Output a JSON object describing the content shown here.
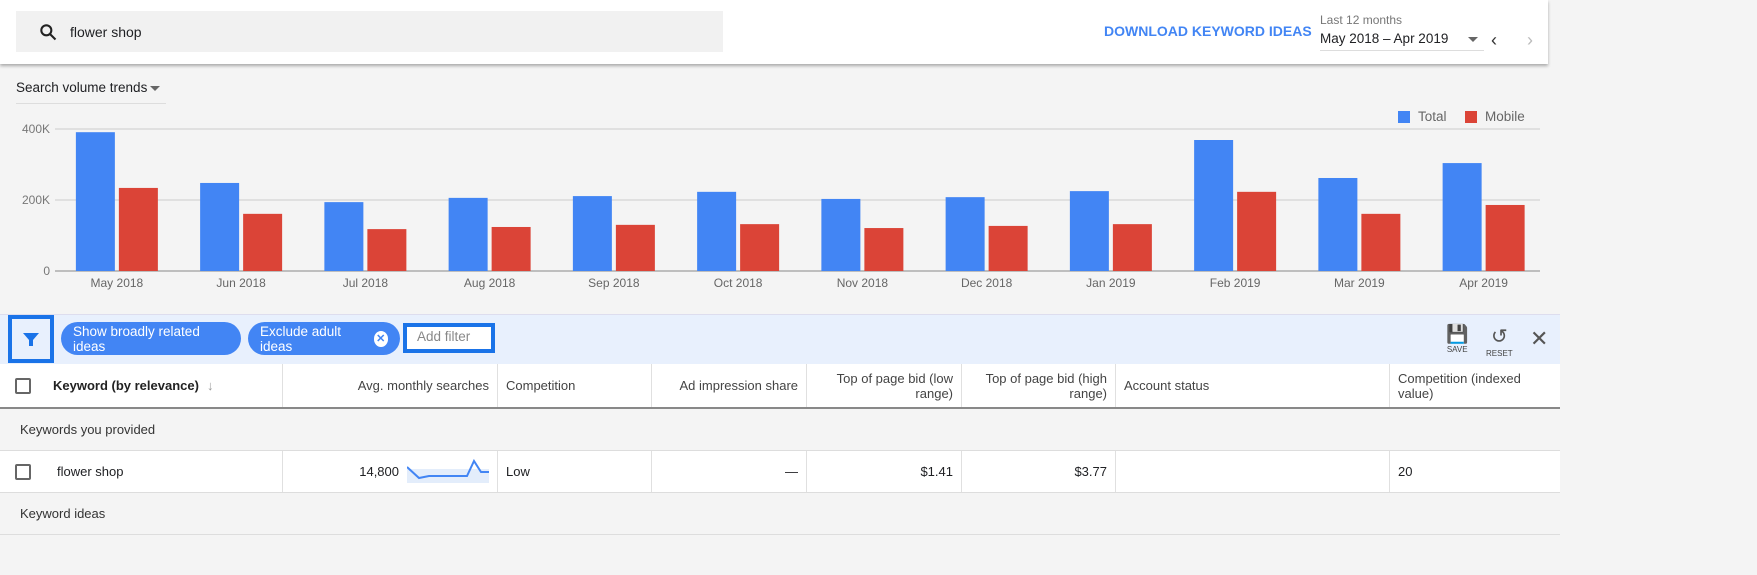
{
  "search": {
    "query": "flower shop"
  },
  "header": {
    "download_label": "DOWNLOAD KEYWORD IDEAS",
    "range_label": "Last 12 months",
    "range_value": "May 2018 – Apr 2019"
  },
  "chart_section": {
    "selector": "Search volume trends"
  },
  "chart_data": {
    "type": "bar",
    "categories": [
      "May 2018",
      "Jun 2018",
      "Jul 2018",
      "Aug 2018",
      "Sep 2018",
      "Oct 2018",
      "Nov 2018",
      "Dec 2018",
      "Jan 2019",
      "Feb 2019",
      "Mar 2019",
      "Apr 2019"
    ],
    "series": [
      {
        "name": "Total",
        "color": "#4285f4",
        "values": [
          391000,
          248000,
          194000,
          206000,
          211000,
          223000,
          203000,
          208000,
          225000,
          369000,
          262000,
          304000
        ]
      },
      {
        "name": "Mobile",
        "color": "#db4437",
        "values": [
          234000,
          161000,
          118000,
          124000,
          130000,
          132000,
          121000,
          127000,
          132000,
          223000,
          161000,
          186000
        ]
      }
    ],
    "yticks": [
      "0",
      "200K",
      "400K"
    ],
    "ylim": [
      0,
      400000
    ],
    "grid": true,
    "legend": "top-right"
  },
  "filters": {
    "chips": [
      "Show broadly related ideas",
      "Exclude adult ideas"
    ],
    "add_filter": "Add filter",
    "save": "SAVE",
    "reset": "RESET"
  },
  "table": {
    "columns": [
      "Keyword (by relevance)",
      "Avg. monthly searches",
      "Competition",
      "Ad impression share",
      "Top of page bid (low range)",
      "Top of page bid (high range)",
      "Account status",
      "Competition (indexed value)"
    ],
    "group1": "Keywords you provided",
    "group2": "Keyword ideas",
    "rows": [
      {
        "keyword": "flower shop",
        "searches": "14,800",
        "competition": "Low",
        "impression": "—",
        "bid_low": "$1.41",
        "bid_high": "$3.77",
        "status": "",
        "index": "20"
      }
    ]
  }
}
